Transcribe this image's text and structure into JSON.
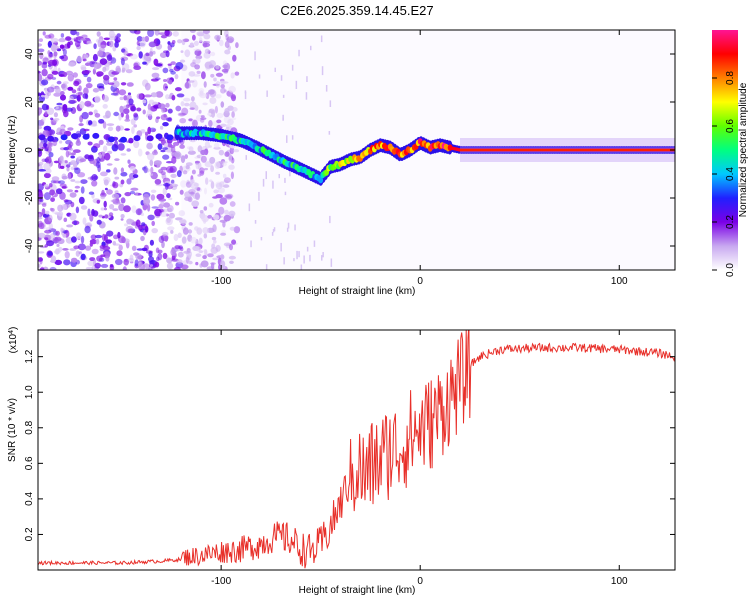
{
  "title": "C2E6.2025.359.14.45.E27",
  "chart_data": [
    {
      "type": "heatmap",
      "name": "spectrogram",
      "xlabel": "Height of straight line (km)",
      "ylabel": "Frequency (Hz)",
      "xlim": [
        -192,
        128
      ],
      "ylim": [
        -50,
        50
      ],
      "x_ticks": [
        -100,
        0,
        100
      ],
      "x_tick_labels": [
        "-100",
        "0",
        "100"
      ],
      "y_ticks": [
        -40,
        -20,
        0,
        20,
        40
      ],
      "y_tick_labels": [
        "-40",
        "-20",
        "0",
        "20",
        "40"
      ],
      "colorbar": {
        "label": "Normalized spectral amplitude",
        "range": [
          0,
          1
        ],
        "ticks": [
          0.0,
          0.2,
          0.4,
          0.6,
          0.8
        ],
        "tick_labels": [
          "0.0",
          "0.2",
          "0.4",
          "0.6",
          "0.8"
        ],
        "colors": [
          "#ffffff",
          "#c8a8f0",
          "#7a00e6",
          "#2020ff",
          "#00c8ff",
          "#00ff80",
          "#60ff00",
          "#ffff00",
          "#ff8000",
          "#ff0000",
          "#ff1493"
        ]
      },
      "ridge": {
        "x": [
          -122,
          -110,
          -100,
          -90,
          -82,
          -75,
          -68,
          -60,
          -55,
          -50,
          -45,
          -40,
          -35,
          -30,
          -25,
          -20,
          -15,
          -10,
          -5,
          0,
          5,
          10,
          20,
          40,
          60,
          80,
          100,
          128
        ],
        "freq": [
          7,
          7,
          6,
          4,
          1,
          -2,
          -5,
          -8,
          -10,
          -12,
          -7,
          -6,
          -4,
          -3,
          0,
          2,
          1,
          -2,
          0,
          3,
          1,
          2,
          0,
          0,
          0,
          0,
          0,
          0
        ],
        "amplitude": [
          0.35,
          0.4,
          0.45,
          0.45,
          0.45,
          0.45,
          0.45,
          0.45,
          0.45,
          0.4,
          0.6,
          0.65,
          0.7,
          0.75,
          0.8,
          0.8,
          0.8,
          0.8,
          0.8,
          0.85,
          0.85,
          0.9,
          0.92,
          0.95,
          0.95,
          0.95,
          0.95,
          0.95
        ]
      }
    },
    {
      "type": "line",
      "name": "snr",
      "xlabel": "Height of straight line (km)",
      "ylabel": "SNR (10 * v/v)",
      "y_scale_label": "(x10^4)",
      "y_scale_base": "(x10",
      "y_scale_exp": "4",
      "xlim": [
        -192,
        128
      ],
      "ylim": [
        0,
        1.35
      ],
      "x_ticks": [
        -100,
        0,
        100
      ],
      "x_tick_labels": [
        "-100",
        "0",
        "100"
      ],
      "y_ticks": [
        0.2,
        0.4,
        0.6,
        0.8,
        1.0,
        1.2
      ],
      "y_tick_labels": [
        "0.2",
        "0.4",
        "0.6",
        "0.8",
        "1.0",
        "1.2"
      ],
      "color": "#e8302a",
      "series": [
        {
          "name": "SNR",
          "x": [
            -192,
            -170,
            -150,
            -130,
            -120,
            -110,
            -100,
            -90,
            -80,
            -75,
            -70,
            -65,
            -60,
            -55,
            -50,
            -45,
            -40,
            -35,
            -32,
            -30,
            -28,
            -25,
            -20,
            -15,
            -10,
            -5,
            0,
            5,
            10,
            15,
            20,
            25,
            30,
            40,
            60,
            80,
            100,
            120,
            128
          ],
          "values": [
            0.04,
            0.04,
            0.04,
            0.05,
            0.06,
            0.07,
            0.09,
            0.1,
            0.13,
            0.16,
            0.17,
            0.15,
            0.1,
            0.08,
            0.12,
            0.22,
            0.35,
            0.5,
            0.62,
            0.58,
            0.55,
            0.6,
            0.65,
            0.7,
            0.72,
            0.78,
            0.82,
            0.85,
            0.92,
            1.0,
            1.08,
            1.15,
            1.2,
            1.24,
            1.25,
            1.25,
            1.24,
            1.22,
            1.2
          ]
        }
      ]
    }
  ]
}
